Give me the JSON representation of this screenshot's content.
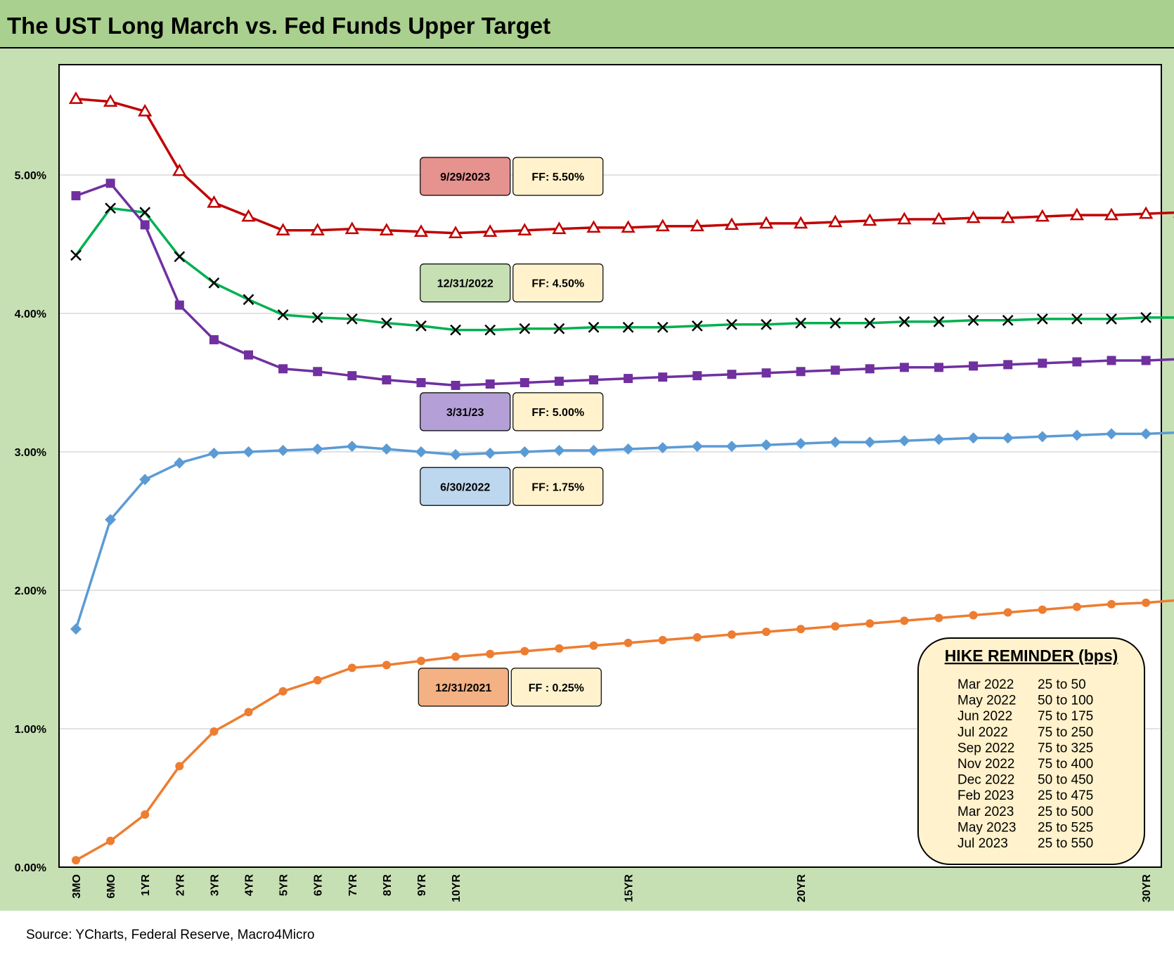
{
  "header": {
    "title": "The UST Long March vs. Fed Funds Upper Target"
  },
  "footer": {
    "source": "Source: YCharts, Federal Reserve, Macro4Micro"
  },
  "colors": {
    "title_bg": "#a9d08e",
    "frame_bg": "#c6e0b4",
    "plot_bg": "#ffffff",
    "grid": "#d9d9d9",
    "ff_box": "#fff2cc"
  },
  "chart_data": {
    "type": "line",
    "y_unit": "percent",
    "ylim": [
      0,
      5.8
    ],
    "y_ticks": [
      {
        "value": 0,
        "label": "0.00%"
      },
      {
        "value": 1,
        "label": "1.00%"
      },
      {
        "value": 2,
        "label": "2.00%"
      },
      {
        "value": 3,
        "label": "3.00%"
      },
      {
        "value": 4,
        "label": "4.00%"
      },
      {
        "value": 5,
        "label": "5.00%"
      }
    ],
    "grid": true,
    "x_labels": [
      {
        "index": 0,
        "label": "3MO"
      },
      {
        "index": 1,
        "label": "6MO"
      },
      {
        "index": 2,
        "label": "1YR"
      },
      {
        "index": 3,
        "label": "2YR"
      },
      {
        "index": 4,
        "label": "3YR"
      },
      {
        "index": 5,
        "label": "4YR"
      },
      {
        "index": 6,
        "label": "5YR"
      },
      {
        "index": 7,
        "label": "6YR"
      },
      {
        "index": 8,
        "label": "7YR"
      },
      {
        "index": 9,
        "label": "8YR"
      },
      {
        "index": 10,
        "label": "9YR"
      },
      {
        "index": 11,
        "label": "10YR"
      },
      {
        "index": 16,
        "label": "15YR"
      },
      {
        "index": 21,
        "label": "20YR"
      },
      {
        "index": 31,
        "label": "30YR"
      }
    ],
    "series": [
      {
        "name": "9/29/2023",
        "ff_label": "FF: 5.50%",
        "color": "#c00000",
        "label_bg": "#e6928f",
        "marker": "triangle",
        "values": [
          5.55,
          5.53,
          5.46,
          5.03,
          4.8,
          4.7,
          4.6,
          4.6,
          4.61,
          4.6,
          4.59,
          4.58,
          4.59,
          4.6,
          4.61,
          4.62,
          4.62,
          4.63,
          4.63,
          4.64,
          4.65,
          4.65,
          4.66,
          4.67,
          4.68,
          4.68,
          4.69,
          4.69,
          4.7,
          4.71,
          4.71,
          4.72,
          4.73
        ]
      },
      {
        "name": "12/31/2022",
        "ff_label": "FF: 4.50%",
        "color": "#00b050",
        "label_bg": "#c6e0b4",
        "marker": "x",
        "values": [
          4.42,
          4.76,
          4.73,
          4.41,
          4.22,
          4.1,
          3.99,
          3.97,
          3.96,
          3.93,
          3.91,
          3.88,
          3.88,
          3.89,
          3.89,
          3.9,
          3.9,
          3.9,
          3.91,
          3.92,
          3.92,
          3.93,
          3.93,
          3.93,
          3.94,
          3.94,
          3.95,
          3.95,
          3.96,
          3.96,
          3.96,
          3.97,
          3.97
        ]
      },
      {
        "name": "3/31/23",
        "ff_label": "FF: 5.00%",
        "color": "#7030a0",
        "label_bg": "#b4a0d6",
        "marker": "square",
        "values": [
          4.85,
          4.94,
          4.64,
          4.06,
          3.81,
          3.7,
          3.6,
          3.58,
          3.55,
          3.52,
          3.5,
          3.48,
          3.49,
          3.5,
          3.51,
          3.52,
          3.53,
          3.54,
          3.55,
          3.56,
          3.57,
          3.58,
          3.59,
          3.6,
          3.61,
          3.61,
          3.62,
          3.63,
          3.64,
          3.65,
          3.66,
          3.66,
          3.67
        ]
      },
      {
        "name": "6/30/2022",
        "ff_label": "FF: 1.75%",
        "color": "#5b9bd5",
        "label_bg": "#bdd7ee",
        "marker": "diamond",
        "values": [
          1.72,
          2.51,
          2.8,
          2.92,
          2.99,
          3.0,
          3.01,
          3.02,
          3.04,
          3.02,
          3.0,
          2.98,
          2.99,
          3.0,
          3.01,
          3.01,
          3.02,
          3.03,
          3.04,
          3.04,
          3.05,
          3.06,
          3.07,
          3.07,
          3.08,
          3.09,
          3.1,
          3.1,
          3.11,
          3.12,
          3.13,
          3.13,
          3.14
        ]
      },
      {
        "name": "12/31/2021",
        "ff_label": "FF : 0.25%",
        "color": "#ed7d31",
        "label_bg": "#f4b183",
        "marker": "circle",
        "values": [
          0.05,
          0.19,
          0.38,
          0.73,
          0.98,
          1.12,
          1.27,
          1.35,
          1.44,
          1.46,
          1.49,
          1.52,
          1.54,
          1.56,
          1.58,
          1.6,
          1.62,
          1.64,
          1.66,
          1.68,
          1.7,
          1.72,
          1.74,
          1.76,
          1.78,
          1.8,
          1.82,
          1.84,
          1.86,
          1.88,
          1.9,
          1.91,
          1.93
        ]
      }
    ],
    "label_boxes": [
      {
        "series": 0,
        "anchor_value": 4.99,
        "x_index": 11.4
      },
      {
        "series": 1,
        "anchor_value": 4.22,
        "x_index": 11.4
      },
      {
        "series": 2,
        "anchor_value": 3.29,
        "x_index": 11.4
      },
      {
        "series": 3,
        "anchor_value": 2.75,
        "x_index": 11.4
      },
      {
        "series": 4,
        "anchor_value": 1.3,
        "x_index": 11.35
      }
    ]
  },
  "hike_reminder": {
    "title": "HIKE REMINDER (bps)",
    "rows": [
      {
        "date": "Mar 2022",
        "hike": "25 to 50"
      },
      {
        "date": "May 2022",
        "hike": "50 to 100"
      },
      {
        "date": "Jun 2022",
        "hike": "75 to 175"
      },
      {
        "date": "Jul 2022",
        "hike": "75 to 250"
      },
      {
        "date": "Sep 2022",
        "hike": "75 to 325"
      },
      {
        "date": "Nov 2022",
        "hike": "75 to 400"
      },
      {
        "date": "Dec 2022",
        "hike": "50 to 450"
      },
      {
        "date": "Feb 2023",
        "hike": "25 to 475"
      },
      {
        "date": "Mar 2023",
        "hike": "25 to 500"
      },
      {
        "date": "May 2023",
        "hike": "25 to 525"
      },
      {
        "date": "Jul 2023",
        "hike": "25 to 550"
      }
    ]
  }
}
